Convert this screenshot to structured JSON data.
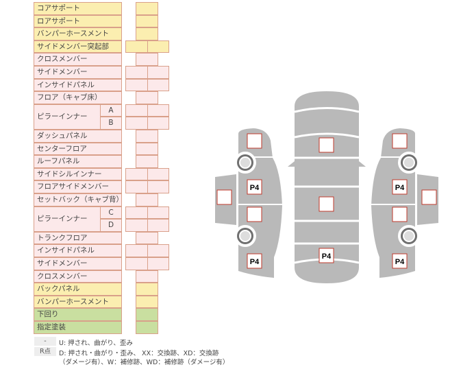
{
  "table": {
    "rows": [
      {
        "label": "コアサポート",
        "color": "yellow",
        "cells": 1
      },
      {
        "label": "ロアサポート",
        "color": "yellow",
        "cells": 1
      },
      {
        "label": "バンパーホースメント",
        "color": "yellow",
        "cells": 1
      },
      {
        "label": "サイドメンバー突起部",
        "color": "yellow",
        "cells": 2
      },
      {
        "label": "クロスメンバー",
        "color": "pink",
        "cells": 1
      },
      {
        "label": "サイドメンバー",
        "color": "pink",
        "cells": 2
      },
      {
        "label": "インサイドパネル",
        "color": "pink",
        "cells": 2
      },
      {
        "label": "フロア（キャブ床）",
        "color": "pink",
        "cells": 1
      },
      {
        "label": "ピラーインナー",
        "color": "pink",
        "cells": 2,
        "sub": [
          "A",
          "B"
        ]
      },
      {
        "label": "ダッシュパネル",
        "color": "pink",
        "cells": 1
      },
      {
        "label": "センターフロア",
        "color": "pink",
        "cells": 1
      },
      {
        "label": "ルーフパネル",
        "color": "pink",
        "cells": 1
      },
      {
        "label": "サイドシルインナー",
        "color": "pink",
        "cells": 2
      },
      {
        "label": "フロアサイドメンバー",
        "color": "pink",
        "cells": 2
      },
      {
        "label": "セットバック（キャブ背）",
        "color": "pink",
        "cells": 1
      },
      {
        "label": "ピラーインナー",
        "color": "pink",
        "cells": 2,
        "sub": [
          "C",
          "D"
        ]
      },
      {
        "label": "トランクフロア",
        "color": "pink",
        "cells": 1
      },
      {
        "label": "インサイドパネル",
        "color": "pink",
        "cells": 2
      },
      {
        "label": "サイドメンバー",
        "color": "pink",
        "cells": 2
      },
      {
        "label": "クロスメンバー",
        "color": "pink",
        "cells": 1
      },
      {
        "label": "バックパネル",
        "color": "yellow",
        "cells": 1
      },
      {
        "label": "バンパーホースメント",
        "color": "yellow",
        "cells": 1
      },
      {
        "label": "下回り",
        "color": "green",
        "cells": 1
      },
      {
        "label": "指定塗装",
        "color": "green",
        "cells": 1
      }
    ]
  },
  "legend": {
    "dash_key": "-",
    "dash_text": "U: 押され、曲がり、歪み",
    "r_key": "R点",
    "r_text_1": "D: 押され・曲がり・歪み、 XX：交換跡、XD：交換跡",
    "r_text_2": "（ダメージ有）、W：補修跡、WD：補修跡（ダメージ有）"
  },
  "diagram": {
    "marker_label": "P4",
    "body_color": "#b9b9b9",
    "box_border_color": "#c0392b"
  }
}
